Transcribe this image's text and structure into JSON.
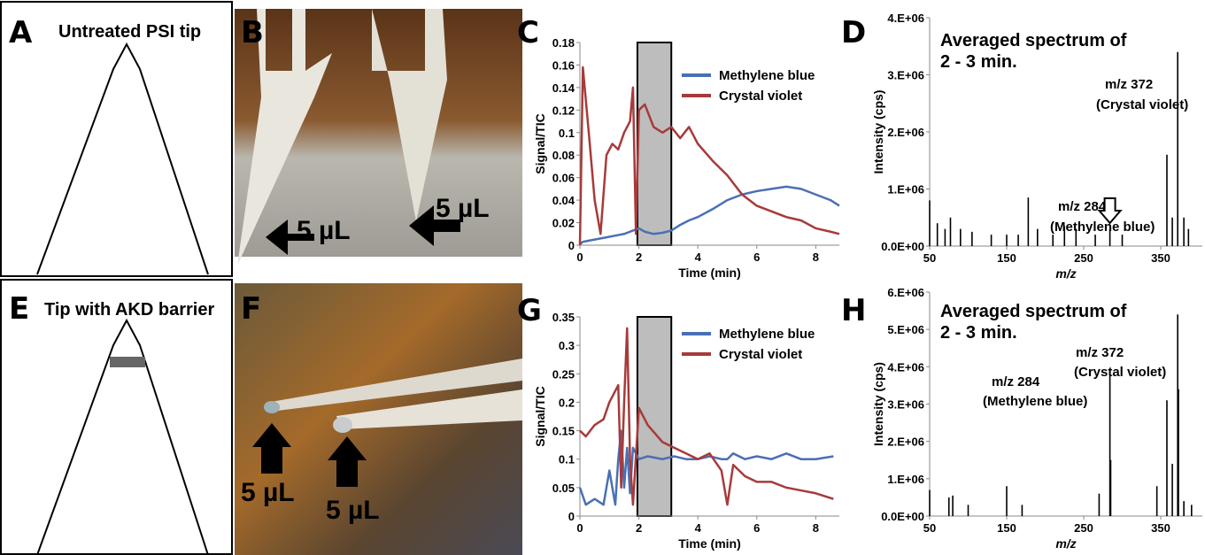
{
  "panels": [
    {
      "letter": "A",
      "title": "Untreated PSI tip"
    },
    {
      "letter": "B",
      "labels": [
        "5 µL",
        "5 µL"
      ]
    },
    {
      "letter": "E",
      "title": "Tip with AKD barrier"
    },
    {
      "letter": "F",
      "labels": [
        "5 µL",
        "5 µL"
      ]
    }
  ],
  "chart_data": [
    {
      "letter": "C",
      "type": "line",
      "xlabel": "Time (min)",
      "ylabel": "Signal/TIC",
      "x": [
        0,
        0.1,
        0.3,
        0.5,
        0.7,
        0.9,
        1.1,
        1.3,
        1.5,
        1.7,
        1.8,
        1.9,
        2,
        2.2,
        2.5,
        2.8,
        3.1,
        3.4,
        3.7,
        4,
        4.5,
        5,
        5.5,
        6,
        6.5,
        7,
        7.5,
        8,
        8.5,
        8.8
      ],
      "series": [
        {
          "name": "Methylene blue",
          "color": "#4a6fb5",
          "values": [
            0.001,
            0.003,
            0.004,
            0.005,
            0.006,
            0.007,
            0.008,
            0.009,
            0.01,
            0.012,
            0.013,
            0.014,
            0.015,
            0.012,
            0.01,
            0.011,
            0.013,
            0.018,
            0.022,
            0.025,
            0.032,
            0.04,
            0.045,
            0.048,
            0.05,
            0.052,
            0.05,
            0.045,
            0.04,
            0.035
          ]
        },
        {
          "name": "Crystal violet",
          "color": "#a83a3a",
          "values": [
            0,
            0.158,
            0.1,
            0.04,
            0.01,
            0.08,
            0.09,
            0.085,
            0.1,
            0.11,
            0.14,
            0.01,
            0.12,
            0.125,
            0.105,
            0.1,
            0.105,
            0.095,
            0.105,
            0.09,
            0.075,
            0.062,
            0.045,
            0.035,
            0.03,
            0.025,
            0.022,
            0.015,
            0.012,
            0.01
          ]
        }
      ],
      "xlim": [
        0,
        8.8
      ],
      "xticks": [
        0,
        2,
        4,
        6,
        8
      ],
      "ylim": [
        0,
        0.18
      ],
      "yticks": [
        0,
        0.02,
        0.04,
        0.06,
        0.08,
        0.1,
        0.12,
        0.14,
        0.16,
        0.18
      ],
      "highlight": {
        "x": [
          1.95,
          3.1
        ],
        "y": [
          0,
          0.18
        ]
      },
      "legend": "upper right"
    },
    {
      "letter": "D",
      "type": "spectrum",
      "xlabel": "m/z",
      "ylabel": "Intensity (cps)",
      "annotations": [
        "Averaged spectrum of",
        "2 - 3 min.",
        "m/z 372",
        "(Crystal violet)",
        "m/z 284",
        "(Methylene blue)"
      ],
      "x": [
        50,
        60,
        70,
        77,
        90,
        105,
        130,
        150,
        165,
        178,
        190,
        210,
        225,
        240,
        265,
        284,
        300,
        358,
        365,
        372,
        380,
        386
      ],
      "values": [
        800000,
        400000,
        300000,
        500000,
        300000,
        250000,
        200000,
        200000,
        200000,
        850000,
        300000,
        200000,
        350000,
        300000,
        200000,
        300000,
        200000,
        1600000,
        500000,
        3400000,
        500000,
        300000
      ],
      "color": "#000000",
      "arrow_at": 284,
      "xlim": [
        50,
        404
      ],
      "xticks": [
        50,
        150,
        250,
        350
      ],
      "ylim": [
        0,
        4000000
      ],
      "yticks": [
        {
          "value": 0,
          "label": "0.0E+00"
        },
        {
          "value": 1000000,
          "label": "1.E+06"
        },
        {
          "value": 2000000,
          "label": "2.E+06"
        },
        {
          "value": 3000000,
          "label": "3.E+06"
        },
        {
          "value": 4000000,
          "label": "4.E+06"
        }
      ]
    },
    {
      "letter": "G",
      "type": "line",
      "xlabel": "Time (min)",
      "ylabel": "Signal/TIC",
      "x": [
        0,
        0.2,
        0.5,
        0.8,
        1,
        1.2,
        1.3,
        1.4,
        1.5,
        1.6,
        1.7,
        1.8,
        2,
        2.3,
        2.8,
        3.2,
        3.6,
        4,
        4.4,
        4.8,
        5,
        5.2,
        5.6,
        6,
        6.5,
        7,
        7.5,
        8,
        8.6
      ],
      "series": [
        {
          "name": "Methylene blue",
          "color": "#4a6fb5",
          "values": [
            0.05,
            0.02,
            0.03,
            0.02,
            0.08,
            0.02,
            0.1,
            0.15,
            0.05,
            0.12,
            0.04,
            0.12,
            0.1,
            0.105,
            0.1,
            0.105,
            0.1,
            0.1,
            0.105,
            0.1,
            0.1,
            0.11,
            0.1,
            0.105,
            0.1,
            0.11,
            0.1,
            0.1,
            0.105
          ]
        },
        {
          "name": "Crystal violet",
          "color": "#a83a3a",
          "values": [
            0.15,
            0.14,
            0.16,
            0.17,
            0.2,
            0.22,
            0.23,
            0.05,
            0.2,
            0.33,
            0.1,
            0.02,
            0.19,
            0.16,
            0.13,
            0.12,
            0.11,
            0.1,
            0.11,
            0.08,
            0.02,
            0.09,
            0.07,
            0.06,
            0.06,
            0.05,
            0.045,
            0.04,
            0.03
          ]
        }
      ],
      "xlim": [
        0,
        8.8
      ],
      "xticks": [
        0,
        2,
        4,
        6,
        8
      ],
      "ylim": [
        0,
        0.35
      ],
      "yticks": [
        0,
        0.05,
        0.1,
        0.15,
        0.2,
        0.25,
        0.3,
        0.35
      ],
      "highlight": {
        "x": [
          1.95,
          3.1
        ],
        "y": [
          0,
          0.35
        ]
      },
      "legend": "upper right"
    },
    {
      "letter": "H",
      "type": "spectrum",
      "xlabel": "m/z",
      "ylabel": "Intensity (cps)",
      "annotations": [
        "Averaged spectrum of",
        "2 - 3 min.",
        "m/z 372",
        "(Crystal violet)",
        "m/z 284",
        "(Methylene blue)"
      ],
      "x": [
        50,
        75,
        80,
        100,
        150,
        170,
        270,
        284,
        285,
        345,
        358,
        365,
        372,
        373,
        380,
        390
      ],
      "values": [
        700000,
        500000,
        550000,
        300000,
        800000,
        300000,
        600000,
        3900000,
        1500000,
        800000,
        3100000,
        1400000,
        5400000,
        3400000,
        400000,
        300000
      ],
      "color": "#000000",
      "xlim": [
        50,
        404
      ],
      "xticks": [
        50,
        150,
        250,
        350
      ],
      "ylim": [
        0,
        6000000
      ],
      "yticks": [
        {
          "value": 0,
          "label": "0.0E+00"
        },
        {
          "value": 1000000,
          "label": "1.E+06"
        },
        {
          "value": 2000000,
          "label": "2.E+06"
        },
        {
          "value": 3000000,
          "label": "3.E+06"
        },
        {
          "value": 4000000,
          "label": "4.E+06"
        },
        {
          "value": 5000000,
          "label": "5.E+06"
        },
        {
          "value": 6000000,
          "label": "6.E+06"
        }
      ]
    }
  ]
}
